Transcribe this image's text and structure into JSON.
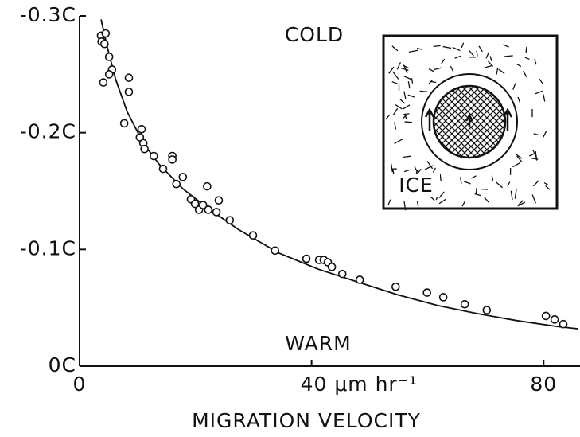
{
  "chart_data": {
    "type": "scatter",
    "annotations": {
      "cold": "COLD",
      "warm": "WARM",
      "ice": "ICE"
    },
    "x_label": "MIGRATION VELOCITY",
    "xlim": [
      0,
      86
    ],
    "xticks": [
      0,
      {
        "value": 40,
        "label": "40 μm hr⁻¹"
      },
      80
    ],
    "ylim": [
      0,
      -0.3
    ],
    "yticks": [
      {
        "value": -0.3,
        "label": "-0.3C"
      },
      {
        "value": -0.2,
        "label": "-0.2C"
      },
      {
        "value": -0.1,
        "label": "-0.1C"
      },
      {
        "value": 0,
        "label": "0C"
      }
    ],
    "color": "#111111",
    "points": {
      "x": [
        3.7,
        3.8,
        4.5,
        4.3,
        5.1,
        5.6,
        5.1,
        4.1,
        8.5,
        8.5,
        7.7,
        10.7,
        10.4,
        11.0,
        11.2,
        12.8,
        14.4,
        16.0,
        16.0,
        17.8,
        16.7,
        19.2,
        19.9,
        20.6,
        21.3,
        22.0,
        22.2,
        23.6,
        24.0,
        25.9,
        29.9,
        33.7,
        39.1,
        41.3,
        42.1,
        42.8,
        43.5,
        45.3,
        48.3,
        54.5,
        59.9,
        62.7,
        66.4,
        70.2,
        80.4,
        81.9,
        83.4
      ],
      "y": [
        -0.283,
        -0.278,
        -0.285,
        -0.276,
        -0.265,
        -0.254,
        -0.25,
        -0.243,
        -0.247,
        -0.235,
        -0.208,
        -0.203,
        -0.196,
        -0.191,
        -0.186,
        -0.18,
        -0.169,
        -0.18,
        -0.177,
        -0.162,
        -0.156,
        -0.143,
        -0.139,
        -0.134,
        -0.138,
        -0.154,
        -0.134,
        -0.132,
        -0.142,
        -0.125,
        -0.112,
        -0.099,
        -0.092,
        -0.091,
        -0.091,
        -0.089,
        -0.085,
        -0.079,
        -0.074,
        -0.068,
        -0.063,
        -0.059,
        -0.053,
        -0.048,
        -0.043,
        -0.04,
        -0.036
      ]
    },
    "curve": {
      "x": [
        3.7,
        4.8,
        6.2,
        8.2,
        11.0,
        13.7,
        17.8,
        21.9,
        27.4,
        34.3,
        41.2,
        48.0,
        54.9,
        61.7,
        68.6,
        75.4,
        82.3,
        86
      ],
      "y": [
        -0.297,
        -0.273,
        -0.246,
        -0.218,
        -0.191,
        -0.173,
        -0.152,
        -0.136,
        -0.117,
        -0.097,
        -0.083,
        -0.072,
        -0.061,
        -0.052,
        -0.045,
        -0.039,
        -0.034,
        -0.032
      ]
    }
  }
}
